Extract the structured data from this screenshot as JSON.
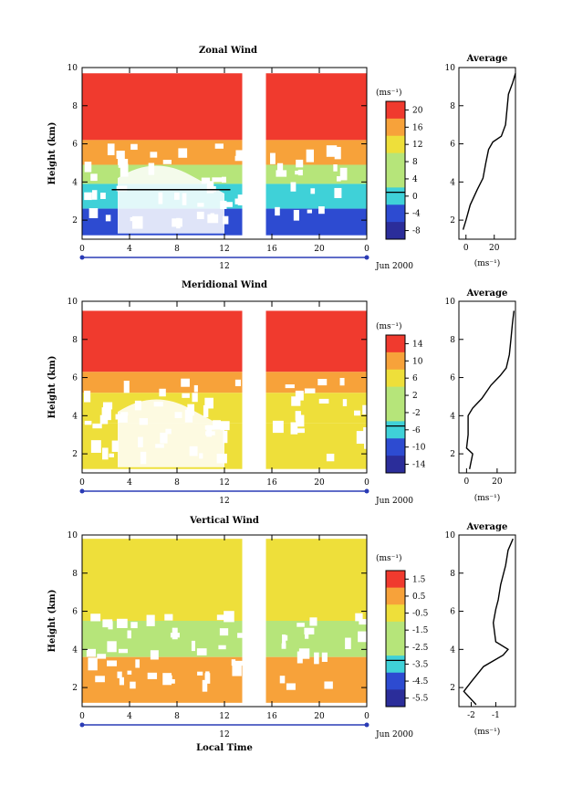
{
  "figure": {
    "date_label": "Jun 2000",
    "x_label": "Local Time",
    "day_label": "12"
  },
  "colors": {
    "red": "#f03a2e",
    "orange": "#f7a23a",
    "yellow": "#eedf3a",
    "lightgreen": "#b6e57a",
    "cyan": "#3fd1d8",
    "blue": "#2d4bd1",
    "darkblue": "#2b2d9a"
  },
  "chart_data": [
    {
      "type": "heatmap",
      "title": "Zonal Wind",
      "ylabel": "Height (km)",
      "x_ticks": [
        "0",
        "4",
        "8",
        "12",
        "16",
        "20",
        "0"
      ],
      "y_ticks": [
        "2",
        "4",
        "6",
        "8",
        "10"
      ],
      "xlim": [
        0,
        24
      ],
      "ylim": [
        1,
        10
      ],
      "data_gap": [
        13.5,
        15.5
      ],
      "colorbar": {
        "unit": "(ms⁻¹)",
        "ticks": [
          "20",
          "16",
          "12",
          "8",
          "4",
          "0",
          "-4",
          "-8"
        ],
        "range": [
          -10,
          22
        ]
      },
      "layers": [
        {
          "from": 6.2,
          "to": 9.7,
          "value": 20
        },
        {
          "from": 4.9,
          "to": 6.2,
          "value": 14
        },
        {
          "from": 3.9,
          "to": 4.9,
          "value": 8
        },
        {
          "from": 2.6,
          "to": 3.9,
          "value": -2
        },
        {
          "from": 1.2,
          "to": 2.6,
          "value": -7
        }
      ],
      "average": {
        "title": "Average",
        "xlabel": "(ms⁻¹)",
        "x_ticks": [
          "0",
          "20"
        ],
        "y_ticks": [
          "2",
          "4",
          "6",
          "8",
          "10"
        ],
        "xlim": [
          -5,
          35
        ],
        "profile": [
          [
            -2,
            1.5
          ],
          [
            0,
            2
          ],
          [
            3,
            2.8
          ],
          [
            8,
            3.6
          ],
          [
            12,
            4.2
          ],
          [
            14,
            5
          ],
          [
            16,
            5.7
          ],
          [
            19,
            6.1
          ],
          [
            25,
            6.4
          ],
          [
            28,
            7
          ],
          [
            29,
            7.8
          ],
          [
            30,
            8.6
          ],
          [
            33,
            9.2
          ],
          [
            35,
            9.7
          ]
        ]
      }
    },
    {
      "type": "heatmap",
      "title": "Meridional Wind",
      "ylabel": "Height (km)",
      "x_ticks": [
        "0",
        "4",
        "8",
        "12",
        "16",
        "20",
        "0"
      ],
      "y_ticks": [
        "2",
        "4",
        "6",
        "8",
        "10"
      ],
      "xlim": [
        0,
        24
      ],
      "ylim": [
        1,
        10
      ],
      "data_gap": [
        13.5,
        15.5
      ],
      "colorbar": {
        "unit": "(ms⁻¹)",
        "ticks": [
          "14",
          "10",
          "6",
          "2",
          "-2",
          "-6",
          "-10",
          "-14"
        ],
        "range": [
          -16,
          16
        ]
      },
      "layers": [
        {
          "from": 6.3,
          "to": 9.5,
          "value": 14
        },
        {
          "from": 5.2,
          "to": 6.3,
          "value": 9
        },
        {
          "from": 3.6,
          "to": 5.2,
          "value": 3
        },
        {
          "from": 1.2,
          "to": 3.6,
          "value": 5
        }
      ],
      "average": {
        "title": "Average",
        "xlabel": "(ms⁻¹)",
        "x_ticks": [
          "0",
          "20"
        ],
        "y_ticks": [
          "2",
          "4",
          "6",
          "8",
          "10"
        ],
        "xlim": [
          -5,
          32
        ],
        "profile": [
          [
            2,
            1.2
          ],
          [
            4,
            2
          ],
          [
            0,
            2.3
          ],
          [
            1,
            3
          ],
          [
            1,
            4
          ],
          [
            4,
            4.4
          ],
          [
            10,
            4.9
          ],
          [
            16,
            5.6
          ],
          [
            22,
            6.1
          ],
          [
            26,
            6.5
          ],
          [
            28,
            7.2
          ],
          [
            29,
            8
          ],
          [
            30,
            8.8
          ],
          [
            31,
            9.5
          ]
        ]
      }
    },
    {
      "type": "heatmap",
      "title": "Vertical Wind",
      "ylabel": "Height (km)",
      "x_ticks": [
        "0",
        "4",
        "8",
        "12",
        "16",
        "20",
        "0"
      ],
      "y_ticks": [
        "2",
        "4",
        "6",
        "8",
        "10"
      ],
      "xlim": [
        0,
        24
      ],
      "ylim": [
        1,
        10
      ],
      "data_gap": [
        13.5,
        15.5
      ],
      "colorbar": {
        "unit": "(ms⁻¹)",
        "ticks": [
          "1.5",
          "0.5",
          "-0.5",
          "-1.5",
          "-2.5",
          "-3.5",
          "-4.5",
          "-5.5"
        ],
        "range": [
          -6,
          2
        ]
      },
      "layers": [
        {
          "from": 5.5,
          "to": 9.8,
          "value": -1.2
        },
        {
          "from": 3.6,
          "to": 5.5,
          "value": -2.0
        },
        {
          "from": 1.1,
          "to": 3.6,
          "value": 0.8
        }
      ],
      "average": {
        "title": "Average",
        "xlabel": "(ms⁻¹)",
        "x_ticks": [
          "-2",
          "-1"
        ],
        "y_ticks": [
          "2",
          "4",
          "6",
          "8",
          "10"
        ],
        "xlim": [
          -2.5,
          -0.2
        ],
        "profile": [
          [
            -1.8,
            1.1
          ],
          [
            -2.3,
            1.8
          ],
          [
            -2.0,
            2.3
          ],
          [
            -1.5,
            3.1
          ],
          [
            -0.7,
            3.7
          ],
          [
            -0.5,
            4.0
          ],
          [
            -1.0,
            4.4
          ],
          [
            -1.1,
            5.4
          ],
          [
            -1.0,
            6.1
          ],
          [
            -0.9,
            6.6
          ],
          [
            -0.8,
            7.4
          ],
          [
            -0.6,
            8.4
          ],
          [
            -0.5,
            9.2
          ],
          [
            -0.3,
            9.8
          ]
        ]
      }
    }
  ]
}
